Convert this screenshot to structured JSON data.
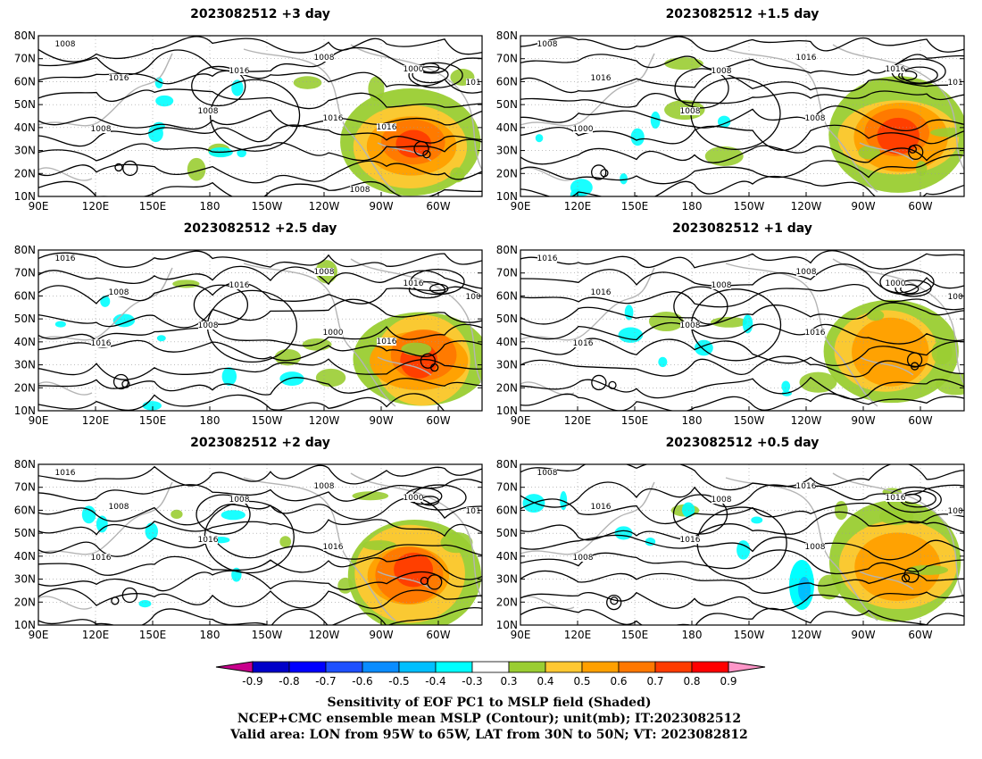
{
  "panels": [
    {
      "title": "2023082512 +3 day",
      "contour_labels": [
        "1008",
        "1016",
        "1016",
        "1008",
        "1008",
        "1008",
        "1000",
        "1016",
        "1016",
        "1016",
        "1008"
      ]
    },
    {
      "title": "2023082512 +1.5 day",
      "contour_labels": [
        "1008",
        "1016",
        "1008",
        "1016",
        "1000",
        "1008",
        "1016",
        "1016",
        "1008"
      ]
    },
    {
      "title": "2023082512 +2.5 day",
      "contour_labels": [
        "1016",
        "1008",
        "1016",
        "1008",
        "1016",
        "1008",
        "1016",
        "1008",
        "1000",
        "1016"
      ]
    },
    {
      "title": "2023082512 +1 day",
      "contour_labels": [
        "1016",
        "1016",
        "1008",
        "1008",
        "1016",
        "1008",
        "1000",
        "1008",
        "1016"
      ]
    },
    {
      "title": "2023082512 +2 day",
      "contour_labels": [
        "1016",
        "1008",
        "1008",
        "1008",
        "1016",
        "1016",
        "1000",
        "1016",
        "1016"
      ]
    },
    {
      "title": "2023082512 +0.5 day",
      "contour_labels": [
        "1008",
        "1016",
        "1008",
        "1016",
        "1008",
        "1016",
        "1016",
        "1008",
        "1008"
      ]
    }
  ],
  "lat_ticks": [
    "80N",
    "70N",
    "60N",
    "50N",
    "40N",
    "30N",
    "20N",
    "10N"
  ],
  "lon_ticks": [
    "90E",
    "120E",
    "150E",
    "180",
    "150W",
    "120W",
    "90W",
    "60W"
  ],
  "colorbar": {
    "labels": [
      "-0.9",
      "-0.8",
      "-0.7",
      "-0.6",
      "-0.5",
      "-0.4",
      "-0.3",
      "0.3",
      "0.4",
      "0.5",
      "0.6",
      "0.7",
      "0.8",
      "0.9"
    ],
    "colors": [
      "#c8008c",
      "#0000c8",
      "#0000ff",
      "#1e50ff",
      "#0a8cff",
      "#00bfff",
      "#00ffff",
      "#ffffff",
      "#9acd32",
      "#ffc832",
      "#ffa000",
      "#ff7800",
      "#ff3c00",
      "#ff0000",
      "#ff96c8"
    ]
  },
  "caption": [
    "Sensitivity of EOF PC1 to MSLP field (Shaded)",
    "NCEP+CMC ensemble mean MSLP (Contour); unit(mb); IT:2023082512",
    "Valid area: LON from 95W to 65W, LAT from 30N to 50N; VT: 2023082812"
  ]
}
